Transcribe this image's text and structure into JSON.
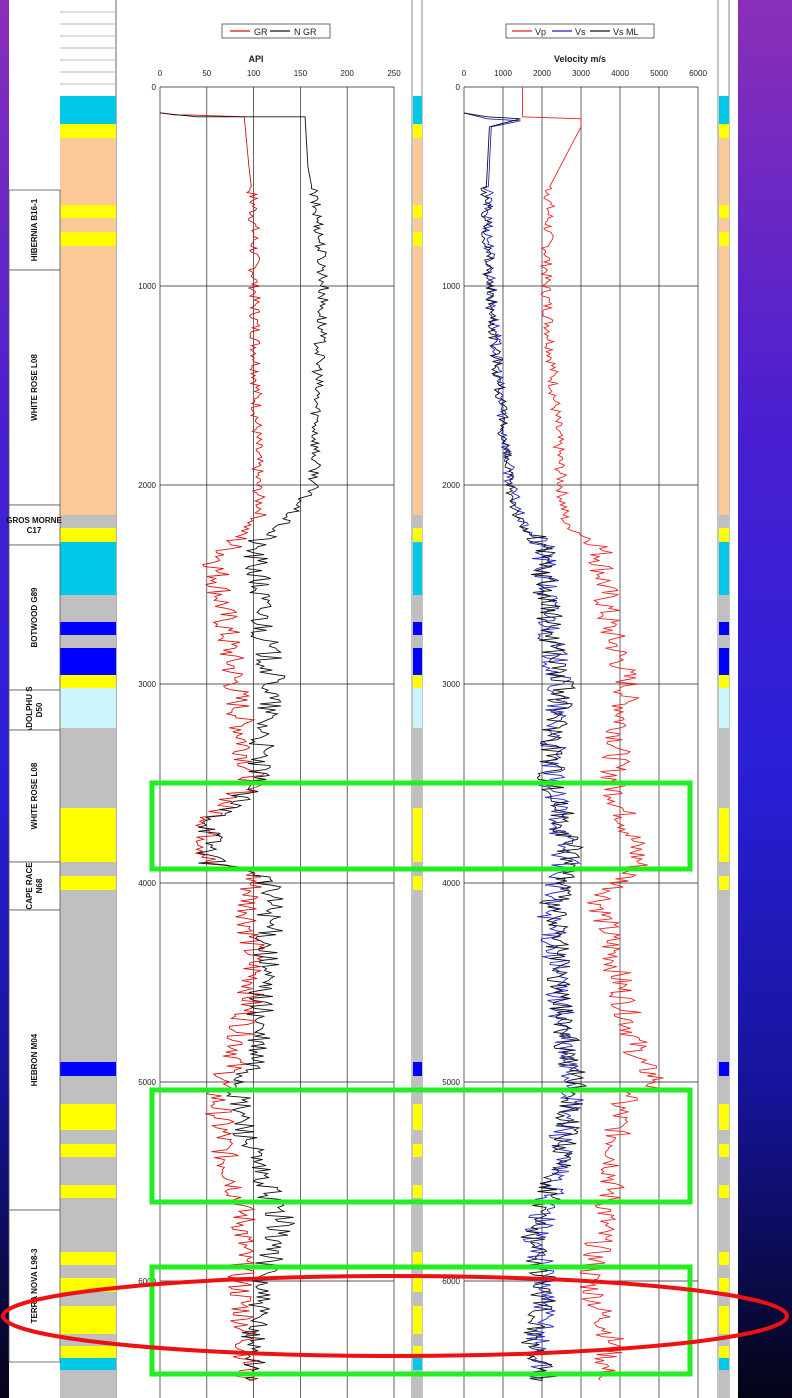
{
  "formations": [
    {
      "name": "HIBERNIA B16-1",
      "top": 190,
      "bottom": 270
    },
    {
      "name": "WHITE ROSE L08",
      "top": 270,
      "bottom": 505
    },
    {
      "name": "GROS MORNE C17",
      "top": 505,
      "bottom": 545
    },
    {
      "name": "BOTWOOD G89",
      "top": 545,
      "bottom": 690
    },
    {
      "name": "ADOLPHU S D50",
      "top": 690,
      "bottom": 730
    },
    {
      "name": "WHITE ROSE L08",
      "top": 730,
      "bottom": 862
    },
    {
      "name": "CAPE RACE N68",
      "top": 862,
      "bottom": 910
    },
    {
      "name": "HEBRON M04",
      "top": 910,
      "bottom": 1210
    },
    {
      "name": "TERRA NOVA L98-3",
      "top": 1210,
      "bottom": 1362
    }
  ],
  "lithology": [
    {
      "top": 96,
      "bottom": 124,
      "color": "#00c8e8"
    },
    {
      "top": 124,
      "bottom": 138,
      "color": "#ffff00"
    },
    {
      "top": 138,
      "bottom": 205,
      "color": "#fbc898"
    },
    {
      "top": 205,
      "bottom": 218,
      "color": "#ffff00"
    },
    {
      "top": 218,
      "bottom": 232,
      "color": "#fbc898"
    },
    {
      "top": 232,
      "bottom": 246,
      "color": "#ffff00"
    },
    {
      "top": 246,
      "bottom": 515,
      "color": "#fbc898"
    },
    {
      "top": 515,
      "bottom": 528,
      "color": "#c0c0c0"
    },
    {
      "top": 528,
      "bottom": 542,
      "color": "#ffff00"
    },
    {
      "top": 542,
      "bottom": 595,
      "color": "#00c8e8"
    },
    {
      "top": 595,
      "bottom": 622,
      "color": "#c0c0c0"
    },
    {
      "top": 622,
      "bottom": 635,
      "color": "#0000ff"
    },
    {
      "top": 635,
      "bottom": 648,
      "color": "#c0c0c0"
    },
    {
      "top": 648,
      "bottom": 675,
      "color": "#0000ff"
    },
    {
      "top": 675,
      "bottom": 688,
      "color": "#ffff00"
    },
    {
      "top": 688,
      "bottom": 728,
      "color": "#ccf6fa"
    },
    {
      "top": 728,
      "bottom": 808,
      "color": "#c0c0c0"
    },
    {
      "top": 808,
      "bottom": 862,
      "color": "#ffff00"
    },
    {
      "top": 862,
      "bottom": 876,
      "color": "#c0c0c0"
    },
    {
      "top": 876,
      "bottom": 890,
      "color": "#ffff00"
    },
    {
      "top": 890,
      "bottom": 1062,
      "color": "#c0c0c0"
    },
    {
      "top": 1062,
      "bottom": 1076,
      "color": "#0000ff"
    },
    {
      "top": 1076,
      "bottom": 1104,
      "color": "#c0c0c0"
    },
    {
      "top": 1104,
      "bottom": 1130,
      "color": "#ffff00"
    },
    {
      "top": 1130,
      "bottom": 1144,
      "color": "#c0c0c0"
    },
    {
      "top": 1144,
      "bottom": 1157,
      "color": "#ffff00"
    },
    {
      "top": 1157,
      "bottom": 1185,
      "color": "#c0c0c0"
    },
    {
      "top": 1185,
      "bottom": 1198,
      "color": "#ffff00"
    },
    {
      "top": 1198,
      "bottom": 1252,
      "color": "#c0c0c0"
    },
    {
      "top": 1252,
      "bottom": 1265,
      "color": "#ffff00"
    },
    {
      "top": 1265,
      "bottom": 1278,
      "color": "#c0c0c0"
    },
    {
      "top": 1278,
      "bottom": 1292,
      "color": "#ffff00"
    },
    {
      "top": 1292,
      "bottom": 1306,
      "color": "#c0c0c0"
    },
    {
      "top": 1306,
      "bottom": 1334,
      "color": "#ffff00"
    },
    {
      "top": 1334,
      "bottom": 1346,
      "color": "#c0c0c0"
    },
    {
      "top": 1346,
      "bottom": 1358,
      "color": "#ffff00"
    },
    {
      "top": 1358,
      "bottom": 1370,
      "color": "#00c8e8"
    },
    {
      "top": 1370,
      "bottom": 1398,
      "color": "#c0c0c0"
    }
  ],
  "highlight_color": "#22ee22",
  "ellipse_color": "#ee1111",
  "chart_data": [
    {
      "type": "line",
      "legend": [
        "GR",
        "N GR"
      ],
      "xlabel": "API",
      "xlim": [
        0,
        250
      ],
      "xticks": [
        0,
        50,
        100,
        150,
        200,
        250
      ],
      "ylim": [
        0,
        6500
      ],
      "yticks": [
        0,
        1000,
        2000,
        3000,
        4000,
        5000,
        6000
      ],
      "grid": true,
      "series": [
        {
          "name": "GR",
          "color": "#dd1111",
          "values": [
            [
              0,
              130
            ],
            [
              2,
              130
            ],
            [
              16,
              140
            ],
            [
              30,
              140
            ],
            [
              90,
              150
            ],
            [
              95,
              400
            ],
            [
              100,
              600
            ],
            [
              101,
              1000
            ],
            [
              103,
              1500
            ],
            [
              104,
              2000
            ],
            [
              108,
              2150
            ],
            [
              95,
              2200
            ],
            [
              60,
              2400
            ],
            [
              70,
              2700
            ],
            [
              80,
              3000
            ],
            [
              90,
              3300
            ],
            [
              100,
              3500
            ],
            [
              70,
              3600
            ],
            [
              52,
              3700
            ],
            [
              50,
              3900
            ],
            [
              100,
              3950
            ],
            [
              95,
              4100
            ],
            [
              100,
              4500
            ],
            [
              80,
              4900
            ],
            [
              60,
              5050
            ],
            [
              70,
              5400
            ],
            [
              80,
              5500
            ],
            [
              90,
              5700
            ],
            [
              85,
              6000
            ],
            [
              90,
              6200
            ],
            [
              95,
              6500
            ]
          ]
        },
        {
          "name": "N GR",
          "color": "#111111",
          "values": [
            [
              0,
              130
            ],
            [
              20,
              140
            ],
            [
              40,
              150
            ],
            [
              155,
              150
            ],
            [
              158,
              400
            ],
            [
              170,
              700
            ],
            [
              175,
              1000
            ],
            [
              168,
              1500
            ],
            [
              165,
              2000
            ],
            [
              130,
              2200
            ],
            [
              100,
              2300
            ],
            [
              110,
              2700
            ],
            [
              120,
              3000
            ],
            [
              100,
              3500
            ],
            [
              55,
              3700
            ],
            [
              55,
              3900
            ],
            [
              110,
              3950
            ],
            [
              120,
              4100
            ],
            [
              110,
              4500
            ],
            [
              100,
              4900
            ],
            [
              80,
              5050
            ],
            [
              100,
              5400
            ],
            [
              110,
              5500
            ],
            [
              130,
              5700
            ],
            [
              110,
              6000
            ],
            [
              100,
              6200
            ],
            [
              100,
              6500
            ]
          ]
        }
      ]
    },
    {
      "type": "line",
      "legend": [
        "Vp",
        "Vs",
        "Vs ML"
      ],
      "xlabel": "Velocity m/s",
      "xlim": [
        0,
        6000
      ],
      "xticks": [
        0,
        1000,
        2000,
        3000,
        4000,
        5000,
        6000
      ],
      "ylim": [
        0,
        6500
      ],
      "yticks": [
        0,
        1000,
        2000,
        3000,
        4000,
        5000,
        6000
      ],
      "grid": true,
      "series": [
        {
          "name": "Vp",
          "color": "#ee2222",
          "values": [
            [
              1500,
              0
            ],
            [
              1500,
              150
            ],
            [
              3000,
              160
            ],
            [
              3000,
              200
            ],
            [
              2200,
              500
            ],
            [
              2100,
              1000
            ],
            [
              2300,
              1500
            ],
            [
              2500,
              2000
            ],
            [
              2600,
              2200
            ],
            [
              3500,
              2300
            ],
            [
              3700,
              2700
            ],
            [
              4200,
              3000
            ],
            [
              3800,
              3500
            ],
            [
              4200,
              3700
            ],
            [
              4500,
              3900
            ],
            [
              3500,
              4100
            ],
            [
              4000,
              4500
            ],
            [
              4500,
              4900
            ],
            [
              5000,
              5000
            ],
            [
              4000,
              5100
            ],
            [
              3800,
              5500
            ],
            [
              3600,
              5700
            ],
            [
              3200,
              6000
            ],
            [
              3800,
              6300
            ],
            [
              3500,
              6500
            ]
          ]
        },
        {
          "name": "Vs",
          "color": "#2222cc",
          "values": [
            [
              0,
              130
            ],
            [
              600,
              160
            ],
            [
              1450,
              170
            ],
            [
              700,
              200
            ],
            [
              600,
              600
            ],
            [
              700,
              1000
            ],
            [
              900,
              1500
            ],
            [
              1200,
              2000
            ],
            [
              1500,
              2200
            ],
            [
              2000,
              2300
            ],
            [
              2200,
              2700
            ],
            [
              2400,
              3000
            ],
            [
              2200,
              3500
            ],
            [
              2500,
              3700
            ],
            [
              2600,
              3900
            ],
            [
              2200,
              4100
            ],
            [
              2400,
              4500
            ],
            [
              2600,
              4900
            ],
            [
              2800,
              5000
            ],
            [
              2300,
              5500
            ],
            [
              1800,
              5800
            ],
            [
              2100,
              6000
            ],
            [
              1900,
              6300
            ],
            [
              2000,
              6500
            ]
          ]
        },
        {
          "name": "Vs ML",
          "color": "#111111",
          "values": [
            [
              0,
              130
            ],
            [
              600,
              150
            ],
            [
              1450,
              160
            ],
            [
              650,
              200
            ],
            [
              550,
              600
            ],
            [
              650,
              1000
            ],
            [
              900,
              1500
            ],
            [
              1150,
              2000
            ],
            [
              1450,
              2200
            ],
            [
              2000,
              2300
            ],
            [
              2200,
              2700
            ],
            [
              2500,
              3000
            ],
            [
              2200,
              3500
            ],
            [
              2600,
              3700
            ],
            [
              2800,
              3900
            ],
            [
              2300,
              4100
            ],
            [
              2400,
              4500
            ],
            [
              2700,
              4900
            ],
            [
              2900,
              5000
            ],
            [
              2300,
              5500
            ],
            [
              1700,
              5800
            ],
            [
              2100,
              6000
            ],
            [
              1800,
              6300
            ],
            [
              2000,
              6500
            ]
          ]
        }
      ]
    }
  ]
}
